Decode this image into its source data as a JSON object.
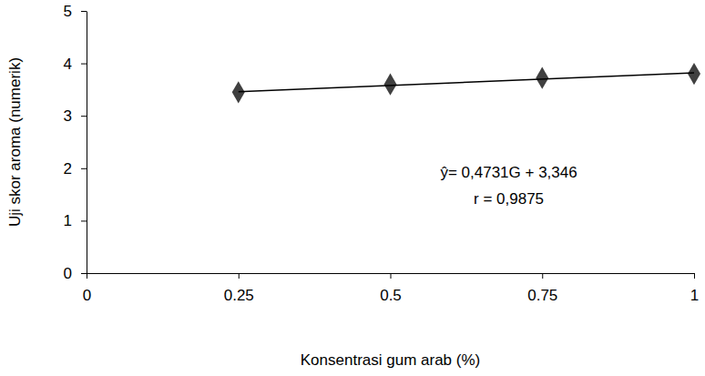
{
  "chart_data": {
    "type": "scatter",
    "x_label": "Konsentrasi gum arab (%)",
    "y_label": "Uji skor aroma (numerik)",
    "xlim": [
      0,
      1
    ],
    "xticks": [
      0,
      0.25,
      0.5,
      0.75,
      1
    ],
    "ylim": [
      0,
      5
    ],
    "yticks": [
      0,
      1,
      2,
      3,
      4,
      5
    ],
    "grid": false,
    "series": [
      {
        "type": "scatter",
        "marker": "diamond",
        "color": "#404040",
        "x": [
          0.25,
          0.5,
          0.75,
          1
        ],
        "values": [
          3.45,
          3.6,
          3.72,
          3.8
        ]
      },
      {
        "type": "line",
        "line_style": "solid",
        "color": "#000000",
        "x": [
          0.25,
          1
        ],
        "values": [
          3.46,
          3.82
        ]
      }
    ],
    "annotations": [
      "ŷ= 0,4731G + 3,346",
      "r = 0,9875"
    ]
  }
}
